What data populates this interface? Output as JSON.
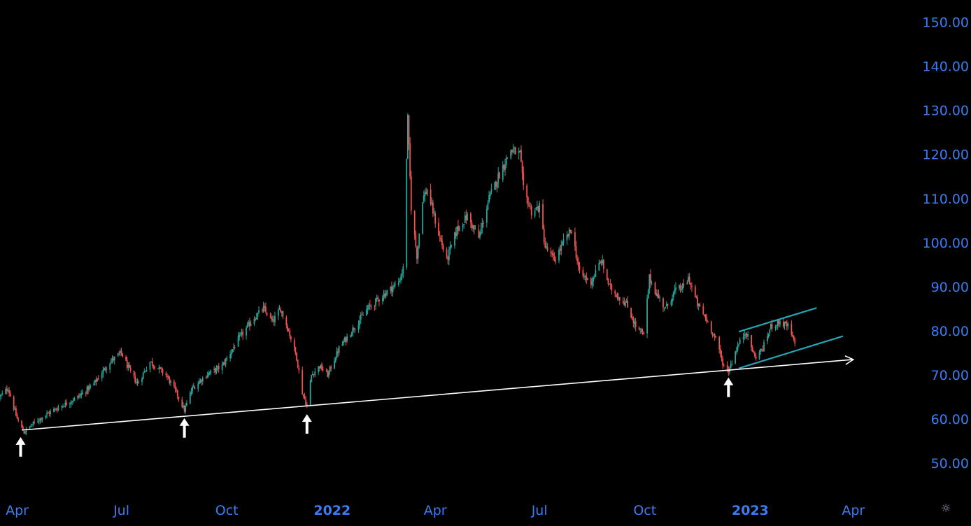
{
  "chart_data": {
    "type": "candlestick",
    "y_axis": {
      "ticks": [
        "150.00",
        "140.00",
        "130.00",
        "120.00",
        "110.00",
        "100.00",
        "90.00",
        "80.00",
        "70.00",
        "60.00",
        "50.00"
      ],
      "range": [
        44,
        155
      ]
    },
    "x_axis": {
      "ticks": [
        {
          "label": "Apr",
          "date": "2021-04-01"
        },
        {
          "label": "Jul",
          "date": "2021-07-01"
        },
        {
          "label": "Oct",
          "date": "2021-10-01"
        },
        {
          "label": "2022",
          "date": "2022-01-01",
          "bold": true
        },
        {
          "label": "Apr",
          "date": "2022-04-01"
        },
        {
          "label": "Jul",
          "date": "2022-07-01"
        },
        {
          "label": "Oct",
          "date": "2022-10-01"
        },
        {
          "label": "2023",
          "date": "2023-01-01",
          "bold": true
        },
        {
          "label": "Apr",
          "date": "2023-04-01"
        }
      ],
      "range": [
        "2021-03-17",
        "2023-05-20"
      ]
    },
    "candle_colors": {
      "up": "#26a69a",
      "down": "#ef5350"
    },
    "price_path": [
      [
        "2021-03-17",
        65
      ],
      [
        "2021-03-24",
        67
      ],
      [
        "2021-04-01",
        60
      ],
      [
        "2021-04-07",
        57
      ],
      [
        "2021-04-15",
        59
      ],
      [
        "2021-04-26",
        61
      ],
      [
        "2021-05-10",
        63
      ],
      [
        "2021-05-24",
        65
      ],
      [
        "2021-06-07",
        68
      ],
      [
        "2021-06-21",
        73
      ],
      [
        "2021-07-01",
        75
      ],
      [
        "2021-07-08",
        71
      ],
      [
        "2021-07-15",
        68
      ],
      [
        "2021-07-26",
        73
      ],
      [
        "2021-08-09",
        70
      ],
      [
        "2021-08-18",
        66
      ],
      [
        "2021-08-25",
        62
      ],
      [
        "2021-09-01",
        67
      ],
      [
        "2021-09-13",
        70
      ],
      [
        "2021-09-27",
        72
      ],
      [
        "2021-10-11",
        78
      ],
      [
        "2021-10-25",
        83
      ],
      [
        "2021-11-02",
        85
      ],
      [
        "2021-11-10",
        82
      ],
      [
        "2021-11-17",
        85
      ],
      [
        "2021-11-24",
        80
      ],
      [
        "2021-12-01",
        74
      ],
      [
        "2021-12-06",
        66
      ],
      [
        "2021-12-10",
        63
      ],
      [
        "2021-12-14",
        70
      ],
      [
        "2021-12-21",
        72
      ],
      [
        "2021-12-28",
        70
      ],
      [
        "2022-01-07",
        76
      ],
      [
        "2022-01-18",
        80
      ],
      [
        "2022-02-01",
        85
      ],
      [
        "2022-02-14",
        88
      ],
      [
        "2022-02-28",
        91
      ],
      [
        "2022-03-04",
        94
      ],
      [
        "2022-03-08",
        128
      ],
      [
        "2022-03-11",
        108
      ],
      [
        "2022-03-16",
        97
      ],
      [
        "2022-03-21",
        110
      ],
      [
        "2022-03-25",
        112
      ],
      [
        "2022-04-04",
        102
      ],
      [
        "2022-04-11",
        96
      ],
      [
        "2022-04-20",
        103
      ],
      [
        "2022-04-29",
        106
      ],
      [
        "2022-05-09",
        101
      ],
      [
        "2022-05-18",
        110
      ],
      [
        "2022-05-26",
        115
      ],
      [
        "2022-06-06",
        121
      ],
      [
        "2022-06-14",
        120
      ],
      [
        "2022-06-17",
        112
      ],
      [
        "2022-06-24",
        107
      ],
      [
        "2022-07-01",
        108
      ],
      [
        "2022-07-06",
        99
      ],
      [
        "2022-07-14",
        96
      ],
      [
        "2022-07-22",
        100
      ],
      [
        "2022-07-29",
        103
      ],
      [
        "2022-08-05",
        93
      ],
      [
        "2022-08-15",
        91
      ],
      [
        "2022-08-24",
        96
      ],
      [
        "2022-08-31",
        90
      ],
      [
        "2022-09-07",
        88
      ],
      [
        "2022-09-15",
        86
      ],
      [
        "2022-09-23",
        81
      ],
      [
        "2022-09-30",
        79
      ],
      [
        "2022-10-05",
        92
      ],
      [
        "2022-10-12",
        88
      ],
      [
        "2022-10-19",
        85
      ],
      [
        "2022-10-27",
        89
      ],
      [
        "2022-11-04",
        90
      ],
      [
        "2022-11-08",
        92
      ],
      [
        "2022-11-16",
        86
      ],
      [
        "2022-11-25",
        82
      ],
      [
        "2022-12-02",
        78
      ],
      [
        "2022-12-09",
        72
      ],
      [
        "2022-12-13",
        71
      ],
      [
        "2022-12-20",
        76
      ],
      [
        "2022-12-28",
        80
      ],
      [
        "2023-01-05",
        74
      ],
      [
        "2023-01-12",
        76
      ],
      [
        "2023-01-19",
        81
      ],
      [
        "2023-01-26",
        82
      ],
      [
        "2023-02-03",
        81
      ],
      [
        "2023-02-09",
        77
      ]
    ],
    "trendlines": [
      {
        "name": "support",
        "color": "#ffffff",
        "from": [
          "2021-04-05",
          57.5
        ],
        "to": [
          "2023-04-01",
          73.5
        ],
        "arrowhead": true
      },
      {
        "name": "channel-upper",
        "color": "#26a3b5",
        "from": [
          "2022-12-22",
          79.8
        ],
        "to": [
          "2023-02-28",
          85.2
        ]
      },
      {
        "name": "channel-lower",
        "color": "#26a3b5",
        "from": [
          "2022-12-22",
          71.5
        ],
        "to": [
          "2023-03-23",
          78.8
        ]
      }
    ],
    "markers": [
      {
        "name": "low-1",
        "date": "2021-04-04",
        "price": 57.5
      },
      {
        "name": "low-2",
        "date": "2021-08-25",
        "price": 61.8
      },
      {
        "name": "low-3",
        "date": "2021-12-10",
        "price": 62.7
      },
      {
        "name": "low-4",
        "date": "2022-12-13",
        "price": 71.0
      }
    ]
  },
  "settings_icon": "gear-icon"
}
